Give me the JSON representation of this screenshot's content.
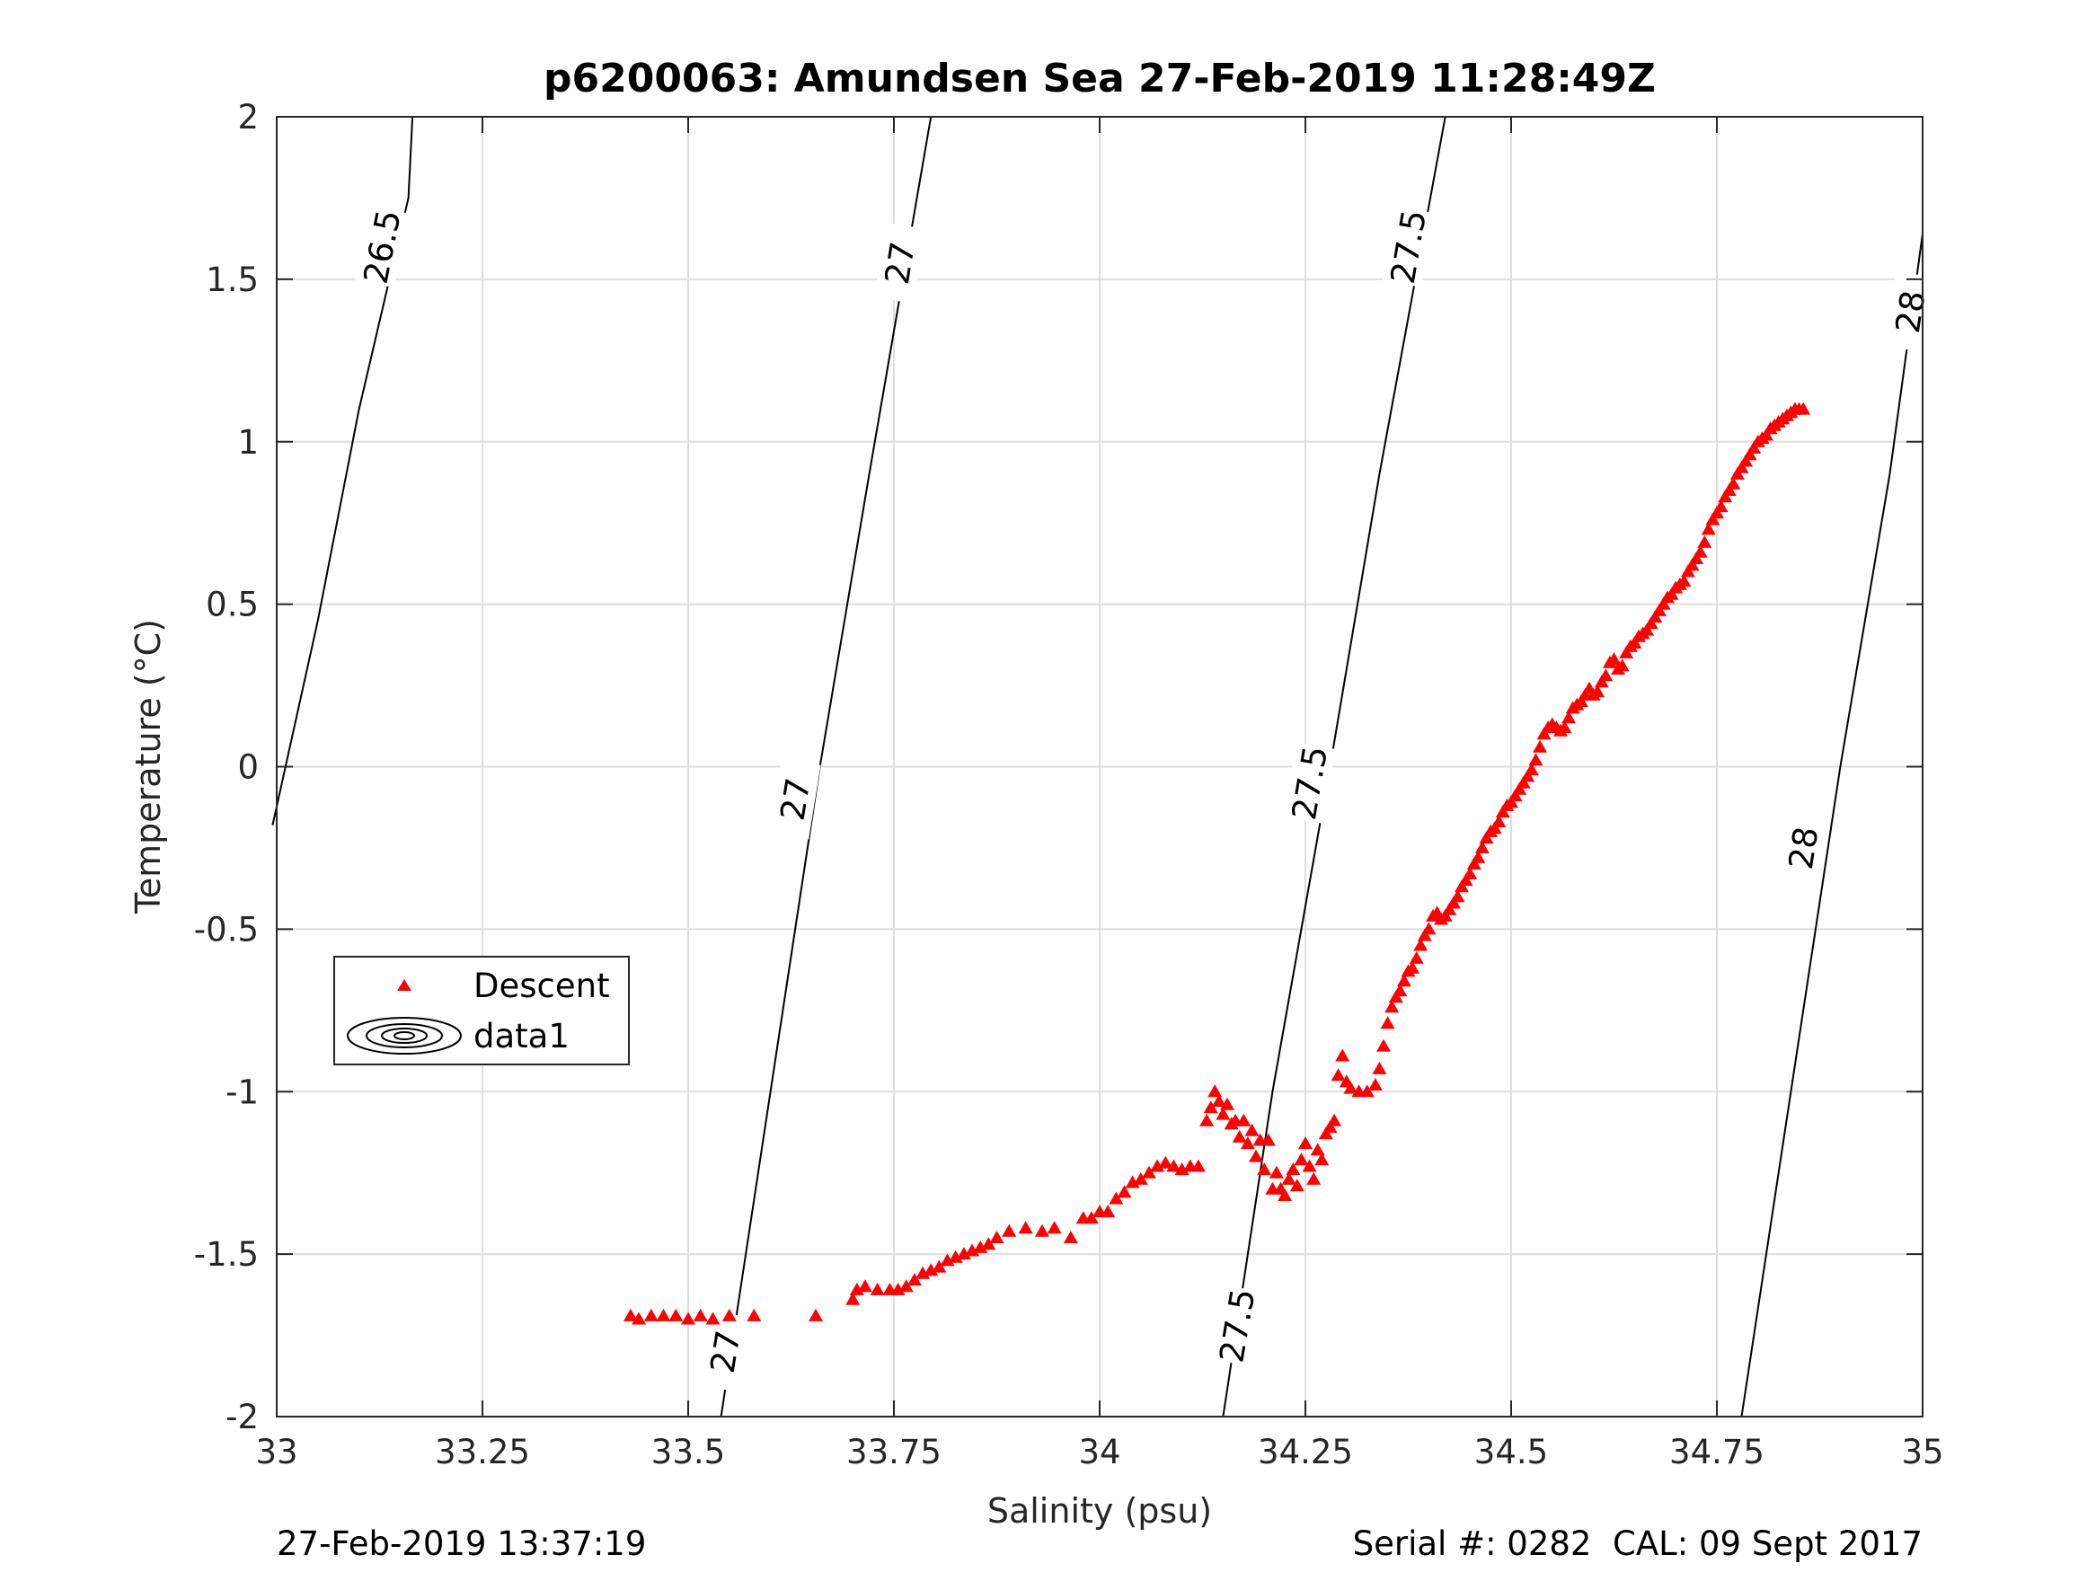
{
  "chart_data": {
    "type": "scatter",
    "title": "p6200063: Amundsen Sea 27-Feb-2019 11:28:49Z",
    "xlabel": "Salinity (psu)",
    "ylabel": "Temperature (°C)",
    "xlim": [
      33,
      35
    ],
    "ylim": [
      -2,
      2
    ],
    "xticks": [
      33,
      33.25,
      33.5,
      33.75,
      34,
      34.25,
      34.5,
      34.75,
      35
    ],
    "xtick_labels": [
      "33",
      "33.25",
      "33.5",
      "33.75",
      "34",
      "34.25",
      "34.5",
      "34.75",
      "35"
    ],
    "yticks": [
      -2,
      -1.5,
      -1,
      -0.5,
      0,
      0.5,
      1,
      1.5,
      2
    ],
    "ytick_labels": [
      "-2",
      "-1.5",
      "-1",
      "-0.5",
      "0",
      "0.5",
      "1",
      "1.5",
      "2"
    ],
    "grid": true,
    "legend": {
      "placement": "left",
      "entries": [
        {
          "label": "Descent",
          "marker": "triangle",
          "color": "#ff0000"
        },
        {
          "label": "data1",
          "marker": "contour",
          "color": "#000000"
        }
      ]
    },
    "contours": [
      {
        "level": 26.5,
        "points": [
          [
            32.995,
            -0.18
          ],
          [
            33.05,
            0.45
          ],
          [
            33.1,
            1.1
          ],
          [
            33.16,
            1.75
          ],
          [
            33.165,
            2.0
          ]
        ],
        "labels": [
          {
            "text": "26.5",
            "s": 33.128,
            "t": 1.6
          }
        ]
      },
      {
        "level": 27,
        "points": [
          [
            33.54,
            -2.0
          ],
          [
            33.6,
            -1.0
          ],
          [
            33.66,
            0.0
          ],
          [
            33.72,
            0.9
          ],
          [
            33.795,
            2.0
          ]
        ],
        "labels": [
          {
            "text": "27",
            "s": 33.545,
            "t": -1.8
          },
          {
            "text": "27",
            "s": 33.63,
            "t": -0.1
          },
          {
            "text": "27",
            "s": 33.757,
            "t": 1.55
          }
        ]
      },
      {
        "level": 27.5,
        "points": [
          [
            34.15,
            -2.0
          ],
          [
            34.21,
            -1.0
          ],
          [
            34.28,
            0.0
          ],
          [
            34.34,
            0.9
          ],
          [
            34.42,
            2.0
          ]
        ],
        "labels": [
          {
            "text": "27.5",
            "s": 34.167,
            "t": -1.72
          },
          {
            "text": "27.5",
            "s": 34.255,
            "t": -0.05
          },
          {
            "text": "27.5",
            "s": 34.375,
            "t": 1.6
          }
        ]
      },
      {
        "level": 28,
        "points": [
          [
            34.78,
            -2.0
          ],
          [
            34.84,
            -1.0
          ],
          [
            34.9,
            0.0
          ],
          [
            34.96,
            0.9
          ],
          [
            35.0,
            1.64
          ]
        ],
        "labels": [
          {
            "text": "28",
            "s": 34.855,
            "t": -0.25
          },
          {
            "text": "28",
            "s": 34.985,
            "t": 1.4
          }
        ]
      }
    ],
    "series": [
      {
        "name": "Descent",
        "color": "#ff0000",
        "marker": "triangle",
        "points": [
          [
            33.43,
            -1.69
          ],
          [
            33.44,
            -1.7
          ],
          [
            33.455,
            -1.69
          ],
          [
            33.47,
            -1.69
          ],
          [
            33.485,
            -1.69
          ],
          [
            33.5,
            -1.7
          ],
          [
            33.515,
            -1.69
          ],
          [
            33.53,
            -1.7
          ],
          [
            33.55,
            -1.69
          ],
          [
            33.58,
            -1.69
          ],
          [
            33.655,
            -1.69
          ],
          [
            33.7,
            -1.64
          ],
          [
            33.705,
            -1.61
          ],
          [
            33.715,
            -1.6
          ],
          [
            33.73,
            -1.61
          ],
          [
            33.745,
            -1.61
          ],
          [
            33.755,
            -1.61
          ],
          [
            33.765,
            -1.6
          ],
          [
            33.775,
            -1.58
          ],
          [
            33.785,
            -1.56
          ],
          [
            33.795,
            -1.55
          ],
          [
            33.805,
            -1.54
          ],
          [
            33.815,
            -1.52
          ],
          [
            33.825,
            -1.51
          ],
          [
            33.835,
            -1.5
          ],
          [
            33.845,
            -1.49
          ],
          [
            33.855,
            -1.48
          ],
          [
            33.865,
            -1.47
          ],
          [
            33.875,
            -1.45
          ],
          [
            33.89,
            -1.43
          ],
          [
            33.91,
            -1.42
          ],
          [
            33.93,
            -1.43
          ],
          [
            33.945,
            -1.42
          ],
          [
            33.965,
            -1.45
          ],
          [
            33.98,
            -1.39
          ],
          [
            33.99,
            -1.39
          ],
          [
            34.0,
            -1.37
          ],
          [
            34.01,
            -1.37
          ],
          [
            34.02,
            -1.33
          ],
          [
            34.03,
            -1.31
          ],
          [
            34.04,
            -1.28
          ],
          [
            34.05,
            -1.27
          ],
          [
            34.06,
            -1.25
          ],
          [
            34.07,
            -1.23
          ],
          [
            34.08,
            -1.22
          ],
          [
            34.09,
            -1.23
          ],
          [
            34.1,
            -1.24
          ],
          [
            34.11,
            -1.23
          ],
          [
            34.12,
            -1.23
          ],
          [
            34.13,
            -1.09
          ],
          [
            34.135,
            -1.05
          ],
          [
            34.14,
            -1.0
          ],
          [
            34.145,
            -1.03
          ],
          [
            34.15,
            -1.07
          ],
          [
            34.155,
            -1.04
          ],
          [
            34.16,
            -1.1
          ],
          [
            34.165,
            -1.09
          ],
          [
            34.17,
            -1.14
          ],
          [
            34.175,
            -1.09
          ],
          [
            34.18,
            -1.16
          ],
          [
            34.185,
            -1.12
          ],
          [
            34.19,
            -1.2
          ],
          [
            34.195,
            -1.15
          ],
          [
            34.2,
            -1.24
          ],
          [
            34.205,
            -1.15
          ],
          [
            34.21,
            -1.3
          ],
          [
            34.215,
            -1.25
          ],
          [
            34.22,
            -1.3
          ],
          [
            34.225,
            -1.32
          ],
          [
            34.23,
            -1.27
          ],
          [
            34.235,
            -1.24
          ],
          [
            34.24,
            -1.29
          ],
          [
            34.245,
            -1.21
          ],
          [
            34.25,
            -1.16
          ],
          [
            34.255,
            -1.23
          ],
          [
            34.26,
            -1.27
          ],
          [
            34.265,
            -1.18
          ],
          [
            34.27,
            -1.21
          ],
          [
            34.275,
            -1.13
          ],
          [
            34.28,
            -1.11
          ],
          [
            34.285,
            -1.09
          ],
          [
            34.29,
            -0.95
          ],
          [
            34.295,
            -0.89
          ],
          [
            34.3,
            -0.97
          ],
          [
            34.305,
            -0.99
          ],
          [
            34.315,
            -1.0
          ],
          [
            34.325,
            -1.0
          ],
          [
            34.335,
            -0.98
          ],
          [
            34.34,
            -0.93
          ],
          [
            34.345,
            -0.86
          ],
          [
            34.35,
            -0.79
          ],
          [
            34.355,
            -0.74
          ],
          [
            34.36,
            -0.71
          ],
          [
            34.365,
            -0.69
          ],
          [
            34.37,
            -0.66
          ],
          [
            34.375,
            -0.63
          ],
          [
            34.38,
            -0.62
          ],
          [
            34.385,
            -0.59
          ],
          [
            34.39,
            -0.55
          ],
          [
            34.395,
            -0.52
          ],
          [
            34.4,
            -0.5
          ],
          [
            34.405,
            -0.46
          ],
          [
            34.41,
            -0.45
          ],
          [
            34.415,
            -0.47
          ],
          [
            34.42,
            -0.46
          ],
          [
            34.425,
            -0.44
          ],
          [
            34.43,
            -0.42
          ],
          [
            34.435,
            -0.4
          ],
          [
            34.44,
            -0.37
          ],
          [
            34.445,
            -0.35
          ],
          [
            34.45,
            -0.33
          ],
          [
            34.455,
            -0.3
          ],
          [
            34.46,
            -0.28
          ],
          [
            34.465,
            -0.25
          ],
          [
            34.47,
            -0.22
          ],
          [
            34.475,
            -0.2
          ],
          [
            34.48,
            -0.19
          ],
          [
            34.485,
            -0.17
          ],
          [
            34.49,
            -0.14
          ],
          [
            34.495,
            -0.12
          ],
          [
            34.5,
            -0.11
          ],
          [
            34.505,
            -0.09
          ],
          [
            34.51,
            -0.07
          ],
          [
            34.515,
            -0.05
          ],
          [
            34.52,
            -0.03
          ],
          [
            34.525,
            -0.01
          ],
          [
            34.53,
            0.02
          ],
          [
            34.535,
            0.06
          ],
          [
            34.54,
            0.1
          ],
          [
            34.545,
            0.12
          ],
          [
            34.55,
            0.13
          ],
          [
            34.555,
            0.12
          ],
          [
            34.56,
            0.11
          ],
          [
            34.565,
            0.12
          ],
          [
            34.57,
            0.15
          ],
          [
            34.575,
            0.18
          ],
          [
            34.58,
            0.19
          ],
          [
            34.585,
            0.2
          ],
          [
            34.59,
            0.22
          ],
          [
            34.595,
            0.24
          ],
          [
            34.6,
            0.22
          ],
          [
            34.605,
            0.23
          ],
          [
            34.61,
            0.26
          ],
          [
            34.615,
            0.28
          ],
          [
            34.62,
            0.32
          ],
          [
            34.625,
            0.33
          ],
          [
            34.63,
            0.3
          ],
          [
            34.635,
            0.31
          ],
          [
            34.64,
            0.35
          ],
          [
            34.645,
            0.37
          ],
          [
            34.65,
            0.38
          ],
          [
            34.655,
            0.4
          ],
          [
            34.66,
            0.41
          ],
          [
            34.665,
            0.42
          ],
          [
            34.67,
            0.44
          ],
          [
            34.675,
            0.46
          ],
          [
            34.68,
            0.48
          ],
          [
            34.685,
            0.5
          ],
          [
            34.69,
            0.52
          ],
          [
            34.695,
            0.53
          ],
          [
            34.7,
            0.55
          ],
          [
            34.705,
            0.56
          ],
          [
            34.71,
            0.57
          ],
          [
            34.715,
            0.6
          ],
          [
            34.72,
            0.62
          ],
          [
            34.725,
            0.64
          ],
          [
            34.73,
            0.66
          ],
          [
            34.735,
            0.69
          ],
          [
            34.74,
            0.73
          ],
          [
            34.745,
            0.76
          ],
          [
            34.75,
            0.78
          ],
          [
            34.755,
            0.8
          ],
          [
            34.76,
            0.83
          ],
          [
            34.765,
            0.85
          ],
          [
            34.77,
            0.87
          ],
          [
            34.775,
            0.9
          ],
          [
            34.78,
            0.92
          ],
          [
            34.785,
            0.94
          ],
          [
            34.79,
            0.96
          ],
          [
            34.795,
            0.98
          ],
          [
            34.8,
            1.0
          ],
          [
            34.805,
            1.01
          ],
          [
            34.81,
            1.02
          ],
          [
            34.815,
            1.04
          ],
          [
            34.82,
            1.05
          ],
          [
            34.825,
            1.06
          ],
          [
            34.83,
            1.07
          ],
          [
            34.835,
            1.08
          ],
          [
            34.84,
            1.09
          ],
          [
            34.845,
            1.1
          ],
          [
            34.85,
            1.1
          ],
          [
            34.855,
            1.1
          ]
        ]
      }
    ]
  },
  "footer": {
    "left": "27-Feb-2019 13:37:19",
    "right": "Serial #: 0282  CAL: 09 Sept 2017"
  }
}
